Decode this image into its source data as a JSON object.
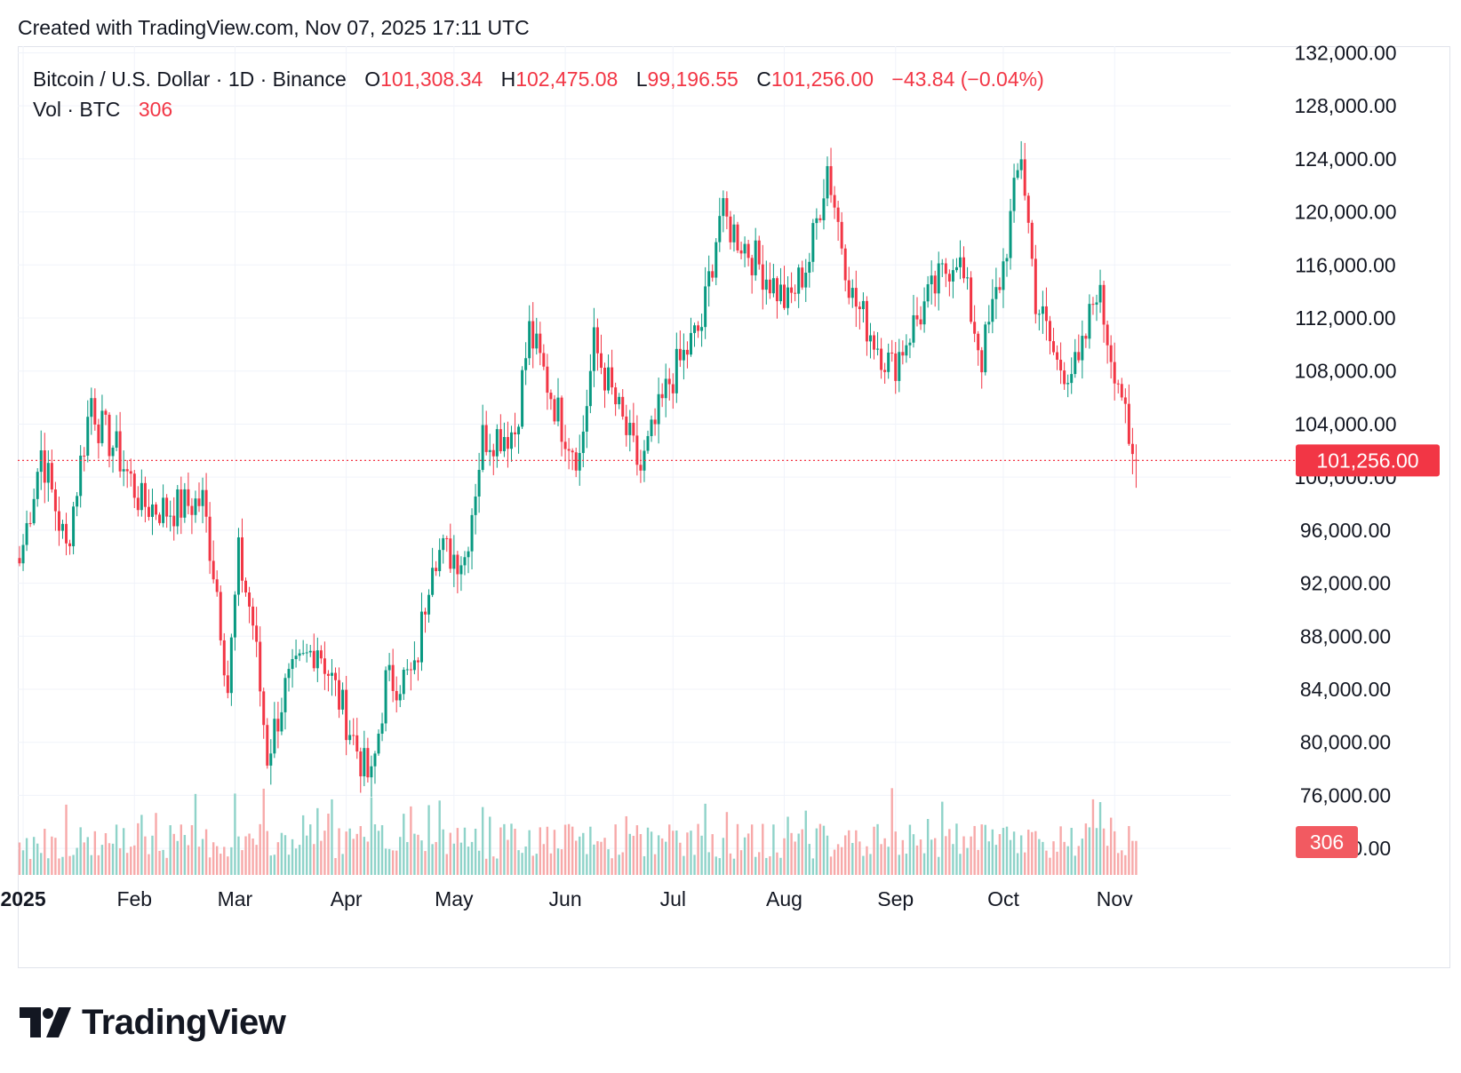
{
  "header": {
    "created_text": "Created with TradingView.com, Nov 07, 2025 17:11 UTC"
  },
  "legend": {
    "symbol": "Bitcoin / U.S. Dollar · 1D · Binance",
    "o_label": "O",
    "o_value": "101,308.34",
    "h_label": "H",
    "h_value": "102,475.08",
    "l_label": "L",
    "l_value": "99,196.55",
    "c_label": "C",
    "c_value": "101,256.00",
    "change": "−43.84 (−0.04%)",
    "vol_label": "Vol · BTC",
    "vol_value": "306"
  },
  "price_label": "101,256.00",
  "volume_label": "306",
  "brand": {
    "name": "TradingView",
    "logo_icon": "tradingview-logo-icon"
  },
  "colors": {
    "up": "#089981",
    "down": "#f23645",
    "up_vol": "#8fd3c9",
    "down_vol": "#f7a9a9",
    "grid": "#f0f3fa",
    "text": "#131722"
  },
  "chart_data": {
    "type": "candlestick",
    "title": "Bitcoin / U.S. Dollar · 1D · Binance",
    "x_tick_labels": [
      "2025",
      "Feb",
      "Mar",
      "Apr",
      "May",
      "Jun",
      "Jul",
      "Aug",
      "Sep",
      "Oct",
      "Nov"
    ],
    "y_tick_labels": [
      "132,000.00",
      "128,000.00",
      "124,000.00",
      "120,000.00",
      "116,000.00",
      "112,000.00",
      "108,000.00",
      "104,000.00",
      "100,000.00",
      "96,000.00",
      "92,000.00",
      "88,000.00",
      "84,000.00",
      "80,000.00",
      "76,000.00",
      "72,000.00"
    ],
    "y_ticks": [
      132000,
      128000,
      124000,
      120000,
      116000,
      112000,
      108000,
      104000,
      100000,
      96000,
      92000,
      88000,
      84000,
      80000,
      76000,
      72000
    ],
    "ylim": [
      70000,
      132500
    ],
    "date_range": [
      "2024-12-31",
      "2025-11-07"
    ],
    "last_price": 101256.0,
    "last_volume_btc": 306,
    "close_anchors": [
      [
        "2024-12-31",
        93500
      ],
      [
        "2025-01-06",
        102000
      ],
      [
        "2025-01-13",
        94500
      ],
      [
        "2025-01-20",
        106000
      ],
      [
        "2025-01-22",
        104000
      ],
      [
        "2025-01-27",
        102000
      ],
      [
        "2025-02-03",
        98000
      ],
      [
        "2025-02-10",
        97500
      ],
      [
        "2025-02-20",
        98200
      ],
      [
        "2025-02-24",
        91500
      ],
      [
        "2025-02-27",
        84000
      ],
      [
        "2025-03-02",
        94000
      ],
      [
        "2025-03-06",
        89000
      ],
      [
        "2025-03-10",
        79000
      ],
      [
        "2025-03-15",
        84000
      ],
      [
        "2025-03-24",
        87500
      ],
      [
        "2025-03-31",
        82500
      ],
      [
        "2025-04-06",
        78000
      ],
      [
        "2025-04-08",
        77000
      ],
      [
        "2025-04-12",
        84500
      ],
      [
        "2025-04-20",
        85000
      ],
      [
        "2025-04-25",
        94500
      ],
      [
        "2025-05-04",
        94000
      ],
      [
        "2025-05-09",
        103000
      ],
      [
        "2025-05-18",
        103500
      ],
      [
        "2025-05-22",
        111000
      ],
      [
        "2025-05-31",
        104000
      ],
      [
        "2025-06-05",
        101500
      ],
      [
        "2025-06-09",
        110000
      ],
      [
        "2025-06-17",
        104000
      ],
      [
        "2025-06-22",
        100500
      ],
      [
        "2025-06-30",
        107200
      ],
      [
        "2025-07-09",
        111500
      ],
      [
        "2025-07-14",
        119800
      ],
      [
        "2025-07-21",
        117500
      ],
      [
        "2025-07-25",
        116000
      ],
      [
        "2025-08-02",
        113000
      ],
      [
        "2025-08-08",
        116500
      ],
      [
        "2025-08-13",
        123500
      ],
      [
        "2025-08-20",
        113500
      ],
      [
        "2025-08-26",
        110500
      ],
      [
        "2025-08-31",
        108200
      ],
      [
        "2025-09-05",
        111000
      ],
      [
        "2025-09-18",
        117000
      ],
      [
        "2025-09-25",
        109000
      ],
      [
        "2025-10-01",
        116000
      ],
      [
        "2025-10-06",
        124500
      ],
      [
        "2025-10-10",
        113500
      ],
      [
        "2025-10-16",
        108500
      ],
      [
        "2025-10-22",
        108000
      ],
      [
        "2025-10-27",
        114500
      ],
      [
        "2025-10-31",
        109500
      ],
      [
        "2025-11-03",
        106500
      ],
      [
        "2025-11-05",
        101500
      ],
      [
        "2025-11-07",
        101256
      ]
    ]
  }
}
